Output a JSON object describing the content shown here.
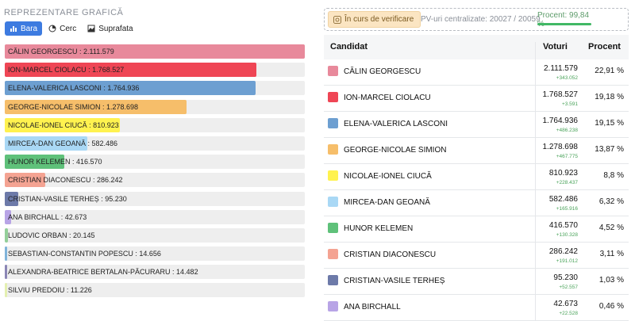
{
  "left_panel": {
    "title": "REPREZENTARE GRAFICĂ",
    "tabs": [
      {
        "label": "Bara",
        "icon": "bar-chart-icon",
        "active": true
      },
      {
        "label": "Cerc",
        "icon": "pie-chart-icon",
        "active": false
      },
      {
        "label": "Suprafata",
        "icon": "area-chart-icon",
        "active": false
      }
    ]
  },
  "chart_data": {
    "type": "bar",
    "title": "",
    "categories": [
      "CĂLIN GEORGESCU",
      "ION-MARCEL CIOLACU",
      "ELENA-VALERICA LASCONI",
      "GEORGE-NICOLAE SIMION",
      "NICOLAE-IONEL CIUCĂ",
      "MIRCEA-DAN GEOANĂ",
      "HUNOR KELEMEN",
      "CRISTIAN DIACONESCU",
      "CRISTIAN-VASILE TERHEȘ",
      "ANA BIRCHALL",
      "LUDOVIC ORBAN",
      "SEBASTIAN-CONSTANTIN POPESCU",
      "ALEXANDRA-BEATRICE BERTALAN-PĂCURARU",
      "SILVIU PREDOIU"
    ],
    "values": [
      2111579,
      1768527,
      1764936,
      1278698,
      810923,
      582486,
      416570,
      286242,
      95230,
      42673,
      20145,
      14656,
      14482,
      11226
    ],
    "value_labels": [
      "CĂLIN GEORGESCU : 2.111.579",
      "ION-MARCEL CIOLACU : 1.768.527",
      "ELENA-VALERICA LASCONI : 1.764.936",
      "GEORGE-NICOLAE SIMION : 1.278.698",
      "NICOLAE-IONEL CIUCĂ : 810.923",
      "MIRCEA-DAN GEOANĂ : 582.486",
      "HUNOR KELEMEN : 416.570",
      "CRISTIAN DIACONESCU : 286.242",
      "CRISTIAN-VASILE TERHEȘ : 95.230",
      "ANA BIRCHALL : 42.673",
      "LUDOVIC ORBAN : 20.145",
      "SEBASTIAN-CONSTANTIN POPESCU : 14.656",
      "ALEXANDRA-BEATRICE BERTALAN-PĂCURARU : 14.482",
      "SILVIU PREDOIU : 11.226"
    ],
    "colors": [
      "#e8899b",
      "#ef4655",
      "#6d9fd1",
      "#f6be6a",
      "#fff24f",
      "#a9d8f5",
      "#5fc17a",
      "#f4a392",
      "#6d7aa9",
      "#b8a4e6",
      "#93cf99",
      "#7fb3da",
      "#8b86b5",
      "#e4f0b0"
    ],
    "xlim": [
      0,
      2111579
    ],
    "orientation": "horizontal",
    "grid": false,
    "legend": "none"
  },
  "status": {
    "verify_label": "În curs de verificare",
    "pv_label": "PV-uri centralizate: 20027 / 20059",
    "percent_label": "Procent: 99,84 %",
    "percent_value": 99.84
  },
  "table": {
    "headers": {
      "candidate": "Candidat",
      "votes": "Voturi",
      "percent": "Procent"
    },
    "rows": [
      {
        "name": "CĂLIN GEORGESCU",
        "votes": "2.111.579",
        "delta": "+343.052",
        "percent": "22,91 %",
        "color": "#e8899b"
      },
      {
        "name": "ION-MARCEL CIOLACU",
        "votes": "1.768.527",
        "delta": "+3.591",
        "percent": "19,18 %",
        "color": "#ef4655"
      },
      {
        "name": "ELENA-VALERICA LASCONI",
        "votes": "1.764.936",
        "delta": "+486.238",
        "percent": "19,15 %",
        "color": "#6d9fd1"
      },
      {
        "name": "GEORGE-NICOLAE SIMION",
        "votes": "1.278.698",
        "delta": "+467.775",
        "percent": "13,87 %",
        "color": "#f6be6a"
      },
      {
        "name": "NICOLAE-IONEL CIUCĂ",
        "votes": "810.923",
        "delta": "+228.437",
        "percent": "8,8 %",
        "color": "#fff24f"
      },
      {
        "name": "MIRCEA-DAN GEOANĂ",
        "votes": "582.486",
        "delta": "+165.916",
        "percent": "6,32 %",
        "color": "#a9d8f5"
      },
      {
        "name": "HUNOR KELEMEN",
        "votes": "416.570",
        "delta": "+130.328",
        "percent": "4,52 %",
        "color": "#5fc17a"
      },
      {
        "name": "CRISTIAN DIACONESCU",
        "votes": "286.242",
        "delta": "+191.012",
        "percent": "3,11 %",
        "color": "#f4a392"
      },
      {
        "name": "CRISTIAN-VASILE TERHEȘ",
        "votes": "95.230",
        "delta": "+52.557",
        "percent": "1,03 %",
        "color": "#6d7aa9"
      },
      {
        "name": "ANA BIRCHALL",
        "votes": "42.673",
        "delta": "+22.528",
        "percent": "0,46 %",
        "color": "#b8a4e6"
      }
    ]
  }
}
